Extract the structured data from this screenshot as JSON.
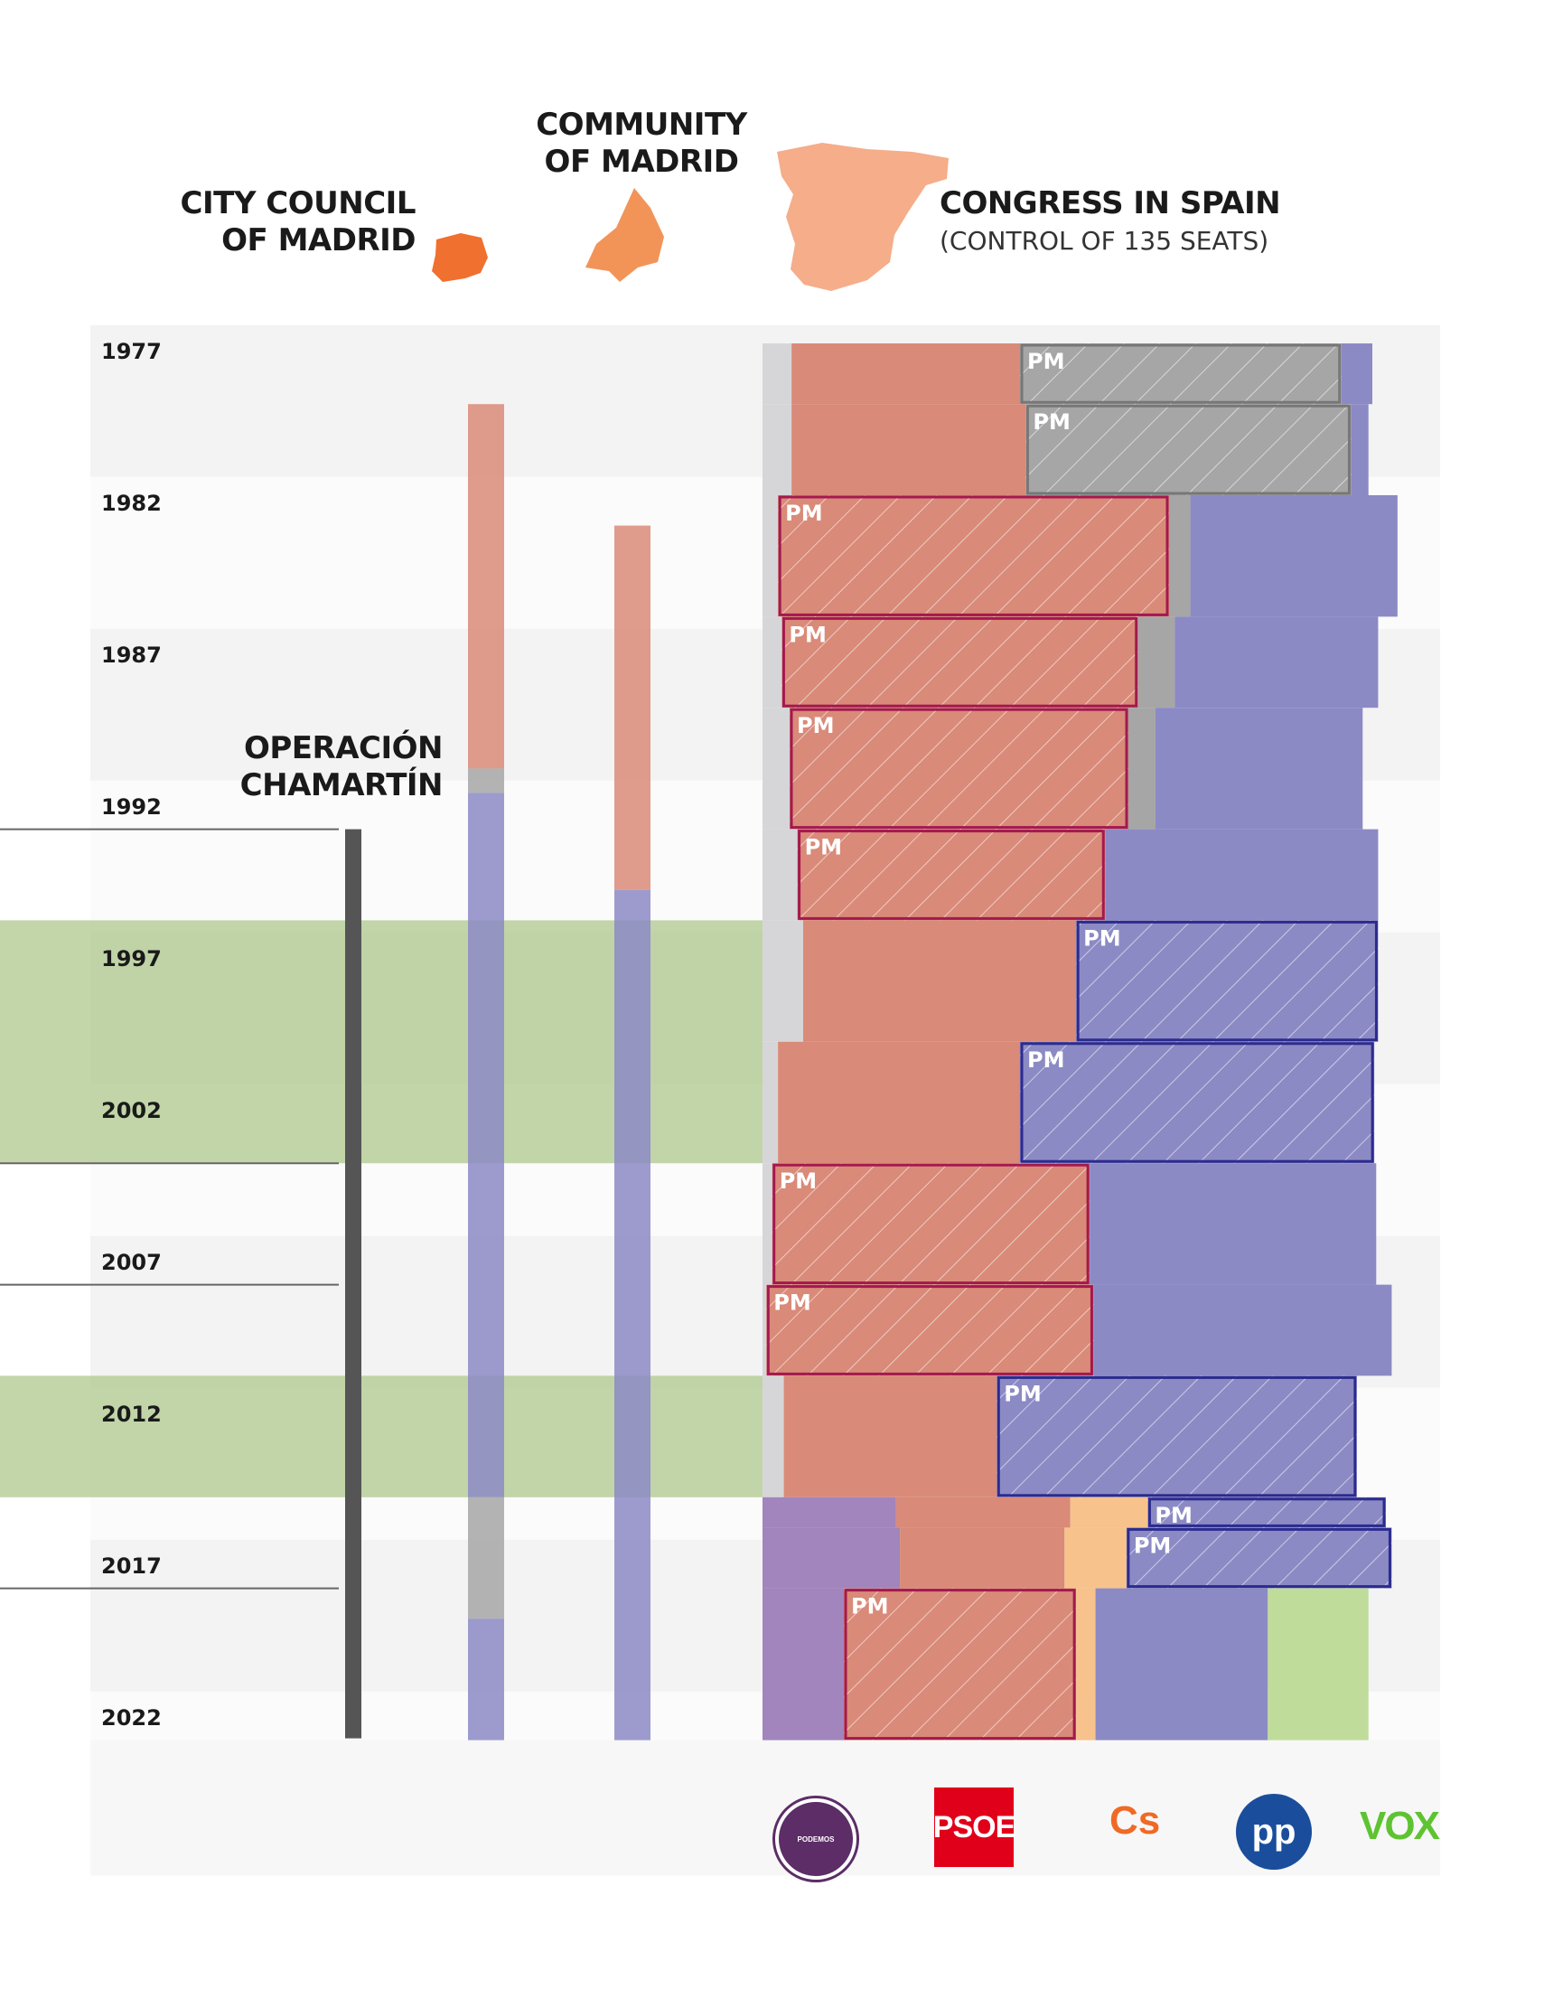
{
  "headers": {
    "city": [
      "CITY COUNCIL",
      "OF MADRID"
    ],
    "community": [
      "COMMUNITY",
      "OF MADRID"
    ],
    "congress_title": "CONGRESS IN SPAIN",
    "congress_sub": "(CONTROL OF 135 SEATS)"
  },
  "operation_label": [
    "OPERACIÓN",
    "CHAMARTÍN"
  ],
  "colors": {
    "psoe": "#d98a78",
    "psoe_border": "#a3194f",
    "pp": "#8c8ac4",
    "pp_border": "#2b2b8f",
    "ucd": "#a6a6a6",
    "cs": "#f7c28b",
    "podemos": "#a185bc",
    "vox": "#bfdc9b",
    "minor": "#d6d6d8",
    "green_band": "#a8c585",
    "city_orange": "#f07030",
    "community_orange": "#f29458",
    "spain_orange": "#f5ad8a"
  },
  "logos": {
    "podemos": "PODEMOS",
    "psoe": "PSOE",
    "cs": "Cs",
    "pp": "pp",
    "vox": "VOX"
  },
  "chart_data": {
    "type": "timeline",
    "title": "Government control: City Council of Madrid, Community of Madrid, Congress in Spain",
    "year_ticks": [
      1977,
      1982,
      1987,
      1992,
      1997,
      2002,
      2007,
      2012,
      2017,
      2022
    ],
    "pm_label": "PM",
    "green_periods": [
      [
        1996,
        2004
      ],
      [
        2011,
        2015
      ]
    ],
    "operation_markers": [
      1993,
      2004,
      2008,
      2018
    ],
    "operation_span": [
      1993,
      2023
    ],
    "city_council": [
      {
        "party": "psoe",
        "from": 1979,
        "to": 1991
      },
      {
        "party": "other",
        "from": 1991,
        "to": 1991.8
      },
      {
        "party": "pp",
        "from": 1991.8,
        "to": 2015
      },
      {
        "party": "other",
        "from": 2015,
        "to": 2019
      },
      {
        "party": "pp",
        "from": 2019,
        "to": 2023
      }
    ],
    "community": [
      {
        "party": "psoe",
        "from": 1983,
        "to": 1995
      },
      {
        "party": "pp",
        "from": 1995,
        "to": 2023
      }
    ],
    "congress_seats_total": 350,
    "congress": [
      {
        "from": 1977,
        "to": 1979,
        "seats": {
          "minor": 15,
          "psoe": 118,
          "ucd": 166,
          "pp": 16
        },
        "pm": "ucd"
      },
      {
        "from": 1979,
        "to": 1982,
        "seats": {
          "minor": 15,
          "psoe": 121,
          "ucd": 168,
          "pp": 9
        },
        "pm": "ucd"
      },
      {
        "from": 1982,
        "to": 1986,
        "seats": {
          "minor": 8,
          "psoe": 202,
          "ucd": 11,
          "pp": 107
        },
        "pm": "psoe"
      },
      {
        "from": 1986,
        "to": 1989,
        "seats": {
          "minor": 10,
          "psoe": 184,
          "ucd": 19,
          "pp": 105
        },
        "pm": "psoe"
      },
      {
        "from": 1989,
        "to": 1993,
        "seats": {
          "minor": 14,
          "psoe": 175,
          "ucd": 14,
          "pp": 107
        },
        "pm": "psoe"
      },
      {
        "from": 1993,
        "to": 1996,
        "seats": {
          "minor": 18,
          "psoe": 159,
          "pp": 141
        },
        "pm": "psoe"
      },
      {
        "from": 1996,
        "to": 2000,
        "seats": {
          "minor": 21,
          "psoe": 141,
          "pp": 156
        },
        "pm": "pp"
      },
      {
        "from": 2000,
        "to": 2004,
        "seats": {
          "minor": 8,
          "psoe": 125,
          "pp": 183
        },
        "pm": "pp"
      },
      {
        "from": 2004,
        "to": 2008,
        "seats": {
          "minor": 5,
          "psoe": 164,
          "pp": 148
        },
        "pm": "psoe"
      },
      {
        "from": 2008,
        "to": 2011,
        "seats": {
          "minor": 2,
          "psoe": 169,
          "pp": 154
        },
        "pm": "psoe"
      },
      {
        "from": 2011,
        "to": 2015,
        "seats": {
          "minor": 11,
          "psoe": 110,
          "pp": 186
        },
        "pm": "pp"
      },
      {
        "from": 2015,
        "to": 2016,
        "seats": {
          "podemos": 69,
          "psoe": 90,
          "cs": 40,
          "pp": 123
        },
        "pm": "pp"
      },
      {
        "from": 2016,
        "to": 2018,
        "seats": {
          "podemos": 71,
          "psoe": 85,
          "cs": 32,
          "pp": 137
        },
        "pm": "pp"
      },
      {
        "from": 2018,
        "to": 2023,
        "seats": {
          "podemos": 42,
          "psoe": 120,
          "cs": 10,
          "pp": 89,
          "vox": 52
        },
        "pm": "psoe"
      }
    ]
  }
}
